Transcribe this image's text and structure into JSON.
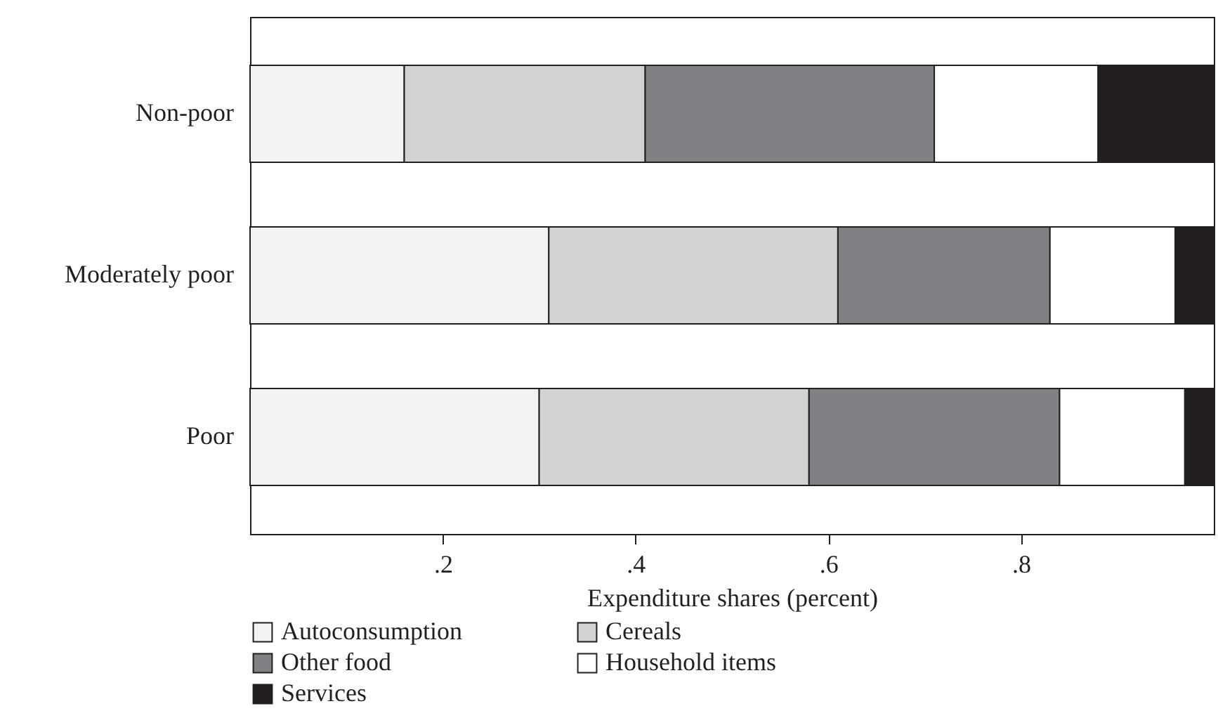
{
  "chart_data": {
    "type": "bar",
    "orientation": "horizontal",
    "stacked": true,
    "xlabel": "Expenditure shares (percent)",
    "categories": [
      "Non-poor",
      "Moderately poor",
      "Poor"
    ],
    "series": [
      {
        "name": "Autoconsumption",
        "color": "#f1f2f3",
        "values": [
          0.16,
          0.31,
          0.3
        ]
      },
      {
        "name": "Cereals",
        "color": "#d1d2d4",
        "values": [
          0.25,
          0.3,
          0.28
        ]
      },
      {
        "name": "Other food",
        "color": "#808184",
        "values": [
          0.3,
          0.22,
          0.26
        ]
      },
      {
        "name": "Household items",
        "color": "#ffffff",
        "values": [
          0.17,
          0.13,
          0.13
        ]
      },
      {
        "name": "Services",
        "color": "#231f20",
        "values": [
          0.12,
          0.04,
          0.03
        ]
      }
    ],
    "xlim": [
      0,
      1
    ],
    "xticks": [
      {
        "value": 0.2,
        "label": ".2"
      },
      {
        "value": 0.4,
        "label": ".4"
      },
      {
        "value": 0.6,
        "label": ".6"
      },
      {
        "value": 0.8,
        "label": ".8"
      }
    ],
    "grid": false,
    "legend": "bottom"
  }
}
